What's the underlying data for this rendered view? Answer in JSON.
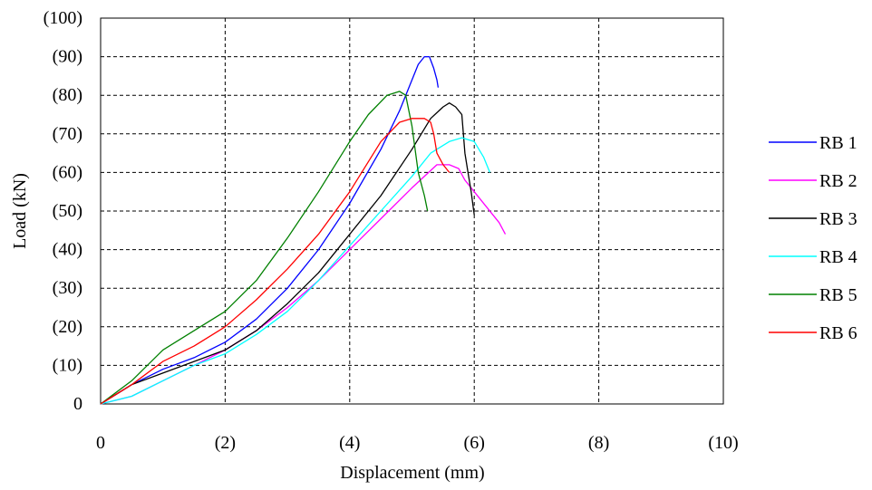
{
  "chart_data": {
    "type": "line",
    "xlabel": "Displacement (mm)",
    "ylabel": "Load (kN)",
    "xlim": [
      0,
      10
    ],
    "ylim": [
      0,
      100
    ],
    "grid": true,
    "grid_style": "dashed",
    "legend_position": "right",
    "x_ticks": [
      "0",
      "(2)",
      "(4)",
      "(6)",
      "(8)",
      "(10)"
    ],
    "y_ticks": [
      "0",
      "(10)",
      "(20)",
      "(30)",
      "(40)",
      "(50)",
      "(60)",
      "(70)",
      "(80)",
      "(90)",
      "(100)"
    ],
    "series": [
      {
        "name": "RB 1",
        "color": "#0000ff",
        "points": [
          [
            0,
            0
          ],
          [
            0.5,
            5
          ],
          [
            1,
            9
          ],
          [
            1.5,
            12
          ],
          [
            2,
            16
          ],
          [
            2.5,
            22
          ],
          [
            3,
            30
          ],
          [
            3.5,
            40
          ],
          [
            4,
            52
          ],
          [
            4.5,
            66
          ],
          [
            4.8,
            76
          ],
          [
            5,
            84
          ],
          [
            5.1,
            88
          ],
          [
            5.2,
            90
          ],
          [
            5.28,
            90
          ],
          [
            5.35,
            87
          ],
          [
            5.4,
            84
          ],
          [
            5.42,
            82
          ]
        ]
      },
      {
        "name": "RB 2",
        "color": "#ff00ff",
        "points": [
          [
            0,
            0
          ],
          [
            0.5,
            2
          ],
          [
            1,
            6
          ],
          [
            1.5,
            10
          ],
          [
            2,
            14
          ],
          [
            2.5,
            19
          ],
          [
            3,
            25
          ],
          [
            3.5,
            32
          ],
          [
            4,
            40
          ],
          [
            4.5,
            48
          ],
          [
            5,
            56
          ],
          [
            5.4,
            62
          ],
          [
            5.6,
            62
          ],
          [
            5.75,
            61
          ],
          [
            5.85,
            58
          ],
          [
            6,
            55
          ],
          [
            6.2,
            51
          ],
          [
            6.4,
            47
          ],
          [
            6.5,
            44
          ]
        ]
      },
      {
        "name": "RB 3",
        "color": "#000000",
        "points": [
          [
            0,
            0
          ],
          [
            0.5,
            5
          ],
          [
            1,
            8
          ],
          [
            1.5,
            11
          ],
          [
            2,
            14
          ],
          [
            2.5,
            19
          ],
          [
            3,
            26
          ],
          [
            3.5,
            34
          ],
          [
            4,
            44
          ],
          [
            4.5,
            54
          ],
          [
            5,
            66
          ],
          [
            5.3,
            74
          ],
          [
            5.5,
            77
          ],
          [
            5.6,
            78
          ],
          [
            5.7,
            77
          ],
          [
            5.8,
            75
          ],
          [
            5.85,
            65
          ],
          [
            5.9,
            60
          ],
          [
            5.95,
            55
          ],
          [
            6,
            49
          ]
        ]
      },
      {
        "name": "RB 4",
        "color": "#00ffff",
        "points": [
          [
            0,
            0
          ],
          [
            0.5,
            2
          ],
          [
            1,
            6
          ],
          [
            1.5,
            10
          ],
          [
            2,
            13
          ],
          [
            2.5,
            18
          ],
          [
            3,
            24
          ],
          [
            3.5,
            32
          ],
          [
            4,
            41
          ],
          [
            4.5,
            50
          ],
          [
            5,
            59
          ],
          [
            5.3,
            65
          ],
          [
            5.6,
            68
          ],
          [
            5.8,
            69
          ],
          [
            6,
            68
          ],
          [
            6.15,
            64
          ],
          [
            6.25,
            60
          ]
        ]
      },
      {
        "name": "RB 5",
        "color": "#008000",
        "points": [
          [
            0,
            0
          ],
          [
            0.5,
            6
          ],
          [
            1,
            14
          ],
          [
            1.5,
            19
          ],
          [
            2,
            24
          ],
          [
            2.5,
            32
          ],
          [
            3,
            43
          ],
          [
            3.5,
            55
          ],
          [
            4,
            68
          ],
          [
            4.3,
            75
          ],
          [
            4.6,
            80
          ],
          [
            4.8,
            81
          ],
          [
            4.9,
            80
          ],
          [
            5,
            72
          ],
          [
            5.1,
            60
          ],
          [
            5.2,
            54
          ],
          [
            5.25,
            50
          ]
        ]
      },
      {
        "name": "RB 6",
        "color": "#ff0000",
        "points": [
          [
            0,
            0
          ],
          [
            0.5,
            5
          ],
          [
            1,
            11
          ],
          [
            1.5,
            15
          ],
          [
            2,
            20
          ],
          [
            2.5,
            27
          ],
          [
            3,
            35
          ],
          [
            3.5,
            44
          ],
          [
            4,
            55
          ],
          [
            4.5,
            68
          ],
          [
            4.8,
            73
          ],
          [
            5,
            74
          ],
          [
            5.2,
            74
          ],
          [
            5.3,
            73
          ],
          [
            5.35,
            70
          ],
          [
            5.4,
            65
          ],
          [
            5.5,
            62
          ],
          [
            5.6,
            60
          ]
        ]
      }
    ]
  }
}
